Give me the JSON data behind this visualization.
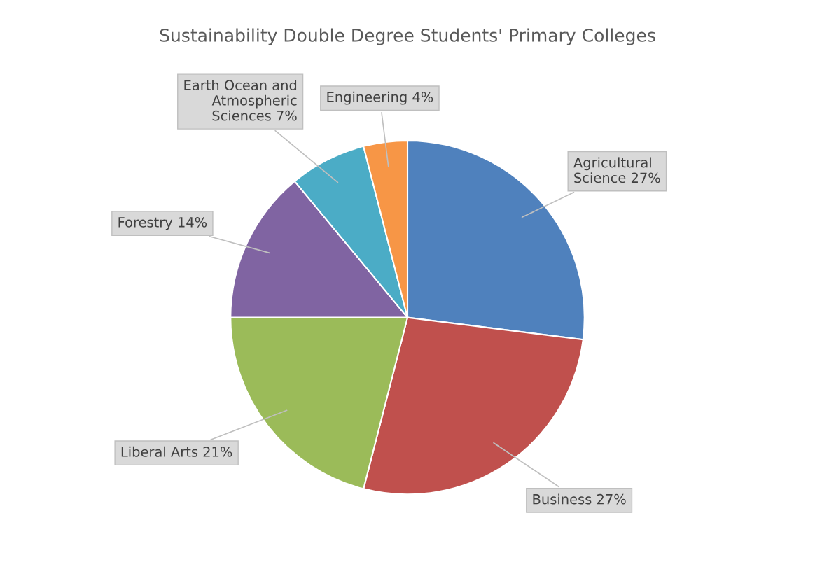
{
  "chart_data": {
    "type": "pie",
    "title": "Sustainability Double Degree Students' Primary Colleges",
    "categories": [
      "Agricultural Science",
      "Business",
      "Liberal Arts",
      "Forestry",
      "Earth Ocean and Atmospheric Sciences",
      "Engineering"
    ],
    "values": [
      27,
      27,
      21,
      14,
      7,
      4
    ],
    "colors": [
      "#4f81bd",
      "#c0504d",
      "#9bbb59",
      "#8064a2",
      "#4bacc6",
      "#f79646"
    ],
    "value_labels": [
      "27%",
      "27%",
      "21%",
      "14%",
      "7%",
      "4%"
    ]
  }
}
